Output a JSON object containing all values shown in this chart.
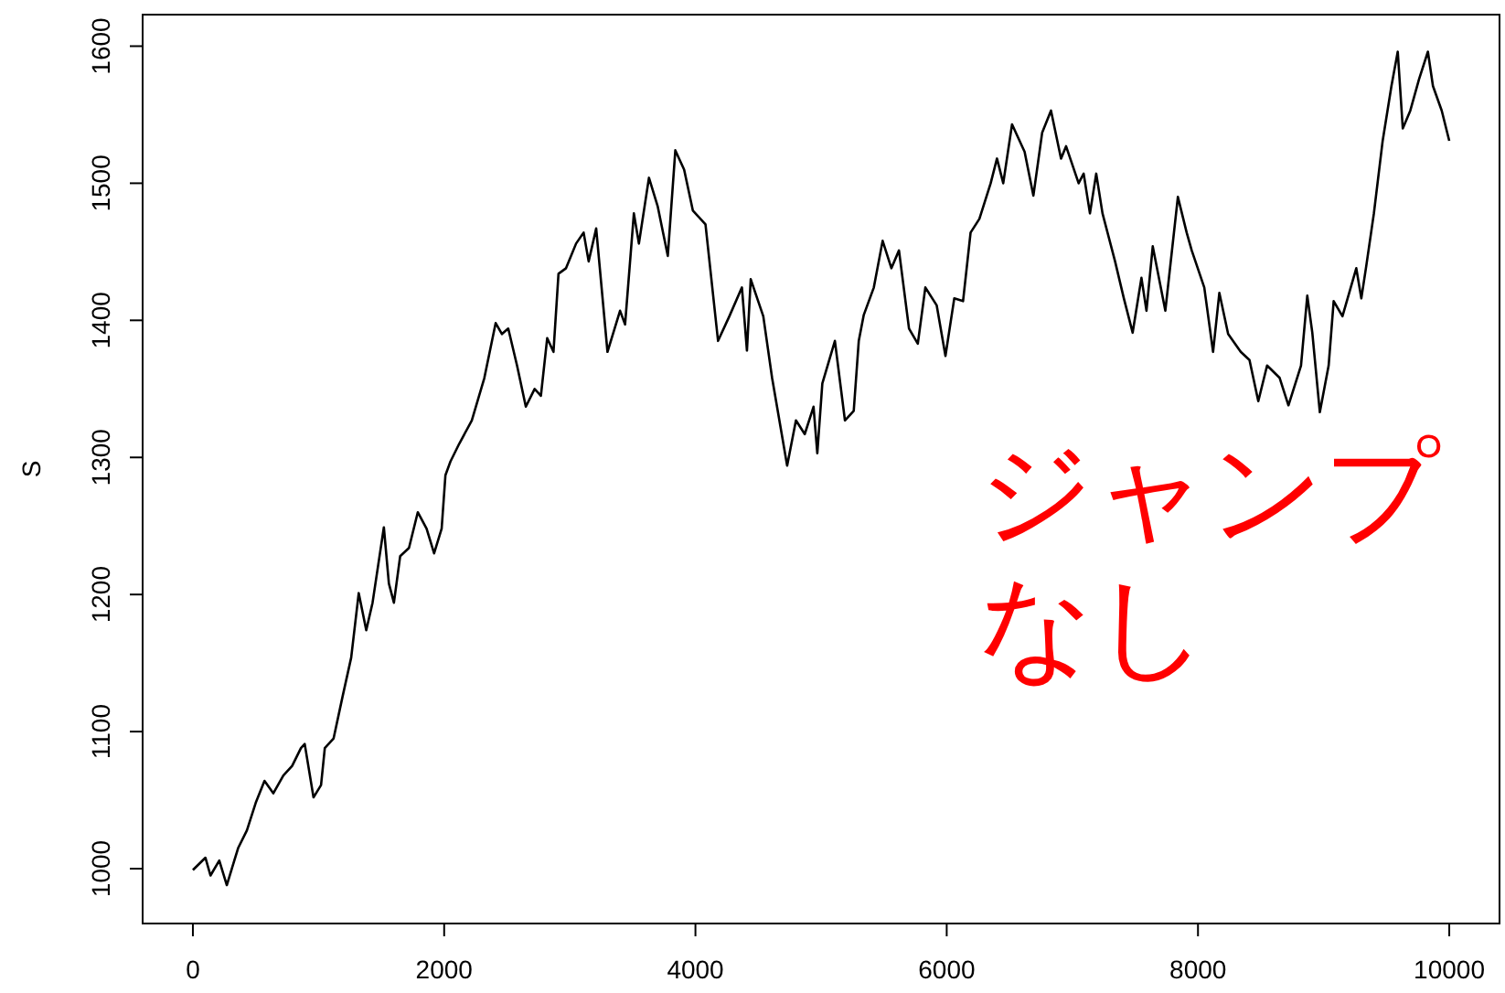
{
  "chart_data": {
    "type": "line",
    "ylabel": "S",
    "xlim": [
      -400,
      10400
    ],
    "ylim": [
      960,
      1623
    ],
    "xticks": [
      0,
      2000,
      4000,
      6000,
      8000,
      10000
    ],
    "yticks": [
      1000,
      1100,
      1200,
      1300,
      1400,
      1500,
      1600
    ],
    "annotations": [
      "ジャンプなし"
    ],
    "series": [
      {
        "color": "#000000",
        "x": [
          0,
          100,
          140,
          210,
          270,
          360,
          430,
          500,
          570,
          640,
          720,
          790,
          860,
          890,
          960,
          1020,
          1050,
          1120,
          1190,
          1260,
          1320,
          1380,
          1430,
          1520,
          1560,
          1600,
          1650,
          1720,
          1790,
          1860,
          1920,
          1980,
          2010,
          2050,
          2120,
          2220,
          2320,
          2410,
          2460,
          2510,
          2580,
          2650,
          2720,
          2770,
          2820,
          2870,
          2910,
          2970,
          3050,
          3110,
          3150,
          3210,
          3300,
          3400,
          3440,
          3510,
          3550,
          3630,
          3700,
          3780,
          3840,
          3910,
          3980,
          4080,
          4180,
          4270,
          4370,
          4410,
          4440,
          4540,
          4610,
          4730,
          4800,
          4870,
          4940,
          4970,
          5010,
          5110,
          5190,
          5260,
          5300,
          5340,
          5420,
          5490,
          5560,
          5620,
          5700,
          5770,
          5830,
          5920,
          5990,
          6060,
          6130,
          6190,
          6260,
          6350,
          6400,
          6450,
          6520,
          6620,
          6690,
          6760,
          6830,
          6910,
          6950,
          7050,
          7090,
          7140,
          7190,
          7240,
          7340,
          7410,
          7480,
          7550,
          7590,
          7640,
          7740,
          7840,
          7910,
          7950,
          8050,
          8120,
          8170,
          8240,
          8340,
          8410,
          8480,
          8550,
          8650,
          8720,
          8820,
          8870,
          8910,
          8970,
          9040,
          9080,
          9150,
          9260,
          9300,
          9340,
          9400,
          9470,
          9540,
          9590,
          9630,
          9690,
          9760,
          9830,
          9870,
          9940,
          10000
        ],
        "values": [
          999,
          1008,
          995,
          1006,
          988,
          1015,
          1028,
          1048,
          1064,
          1055,
          1068,
          1075,
          1088,
          1091,
          1052,
          1061,
          1088,
          1095,
          1125,
          1154,
          1201,
          1174,
          1194,
          1249,
          1208,
          1194,
          1228,
          1234,
          1260,
          1248,
          1230,
          1248,
          1287,
          1297,
          1310,
          1327,
          1358,
          1398,
          1390,
          1394,
          1367,
          1337,
          1350,
          1345,
          1387,
          1377,
          1434,
          1438,
          1456,
          1464,
          1443,
          1467,
          1377,
          1407,
          1397,
          1478,
          1456,
          1504,
          1483,
          1447,
          1524,
          1510,
          1480,
          1470,
          1385,
          1403,
          1424,
          1378,
          1430,
          1403,
          1358,
          1294,
          1327,
          1317,
          1337,
          1303,
          1354,
          1385,
          1327,
          1334,
          1385,
          1404,
          1424,
          1458,
          1438,
          1451,
          1394,
          1383,
          1424,
          1411,
          1374,
          1416,
          1414,
          1464,
          1474,
          1500,
          1518,
          1500,
          1543,
          1523,
          1491,
          1537,
          1553,
          1518,
          1527,
          1500,
          1507,
          1478,
          1507,
          1478,
          1443,
          1416,
          1391,
          1431,
          1407,
          1454,
          1407,
          1490,
          1464,
          1451,
          1424,
          1377,
          1420,
          1390,
          1377,
          1371,
          1341,
          1367,
          1358,
          1338,
          1367,
          1418,
          1391,
          1333,
          1367,
          1414,
          1403,
          1438,
          1416,
          1440,
          1478,
          1531,
          1571,
          1596,
          1540,
          1553,
          1576,
          1596,
          1571,
          1553,
          1531
        ]
      }
    ]
  }
}
